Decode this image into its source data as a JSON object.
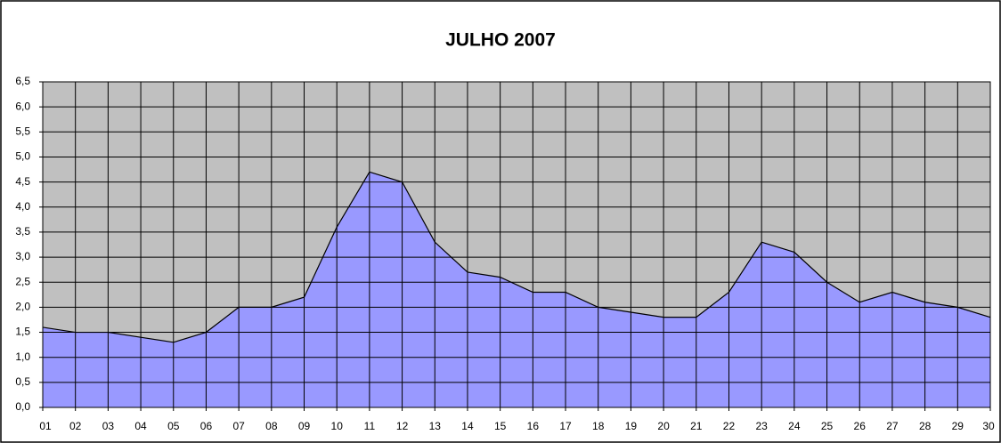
{
  "chart_data": {
    "type": "area",
    "title": "JULHO 2007",
    "categories": [
      "01",
      "02",
      "03",
      "04",
      "05",
      "06",
      "07",
      "08",
      "09",
      "10",
      "11",
      "12",
      "13",
      "14",
      "15",
      "16",
      "17",
      "18",
      "19",
      "20",
      "21",
      "22",
      "23",
      "24",
      "25",
      "26",
      "27",
      "28",
      "29",
      "30"
    ],
    "values": [
      1.6,
      1.5,
      1.5,
      1.4,
      1.3,
      1.5,
      2.0,
      2.0,
      2.2,
      3.6,
      4.7,
      4.5,
      3.3,
      2.7,
      2.6,
      2.3,
      2.3,
      2.0,
      1.9,
      1.8,
      1.8,
      2.3,
      3.3,
      3.1,
      2.5,
      2.1,
      2.3,
      2.1,
      2.0,
      1.8
    ],
    "color": "#9999ff",
    "ylim": [
      0,
      6.5
    ],
    "yticks": [
      {
        "value": 0,
        "label": "0,0"
      },
      {
        "value": 0.5,
        "label": "0,5"
      },
      {
        "value": 1,
        "label": "1,0"
      },
      {
        "value": 1.5,
        "label": "1,5"
      },
      {
        "value": 2,
        "label": "2,0"
      },
      {
        "value": 2.5,
        "label": "2,5"
      },
      {
        "value": 3,
        "label": "3,0"
      },
      {
        "value": 3.5,
        "label": "3,5"
      },
      {
        "value": 4,
        "label": "4,0"
      },
      {
        "value": 4.5,
        "label": "4,5"
      },
      {
        "value": 5,
        "label": "5,0"
      },
      {
        "value": 5.5,
        "label": "5,5"
      },
      {
        "value": 6,
        "label": "6,0"
      },
      {
        "value": 6.5,
        "label": "6,5"
      }
    ],
    "grid": true
  }
}
